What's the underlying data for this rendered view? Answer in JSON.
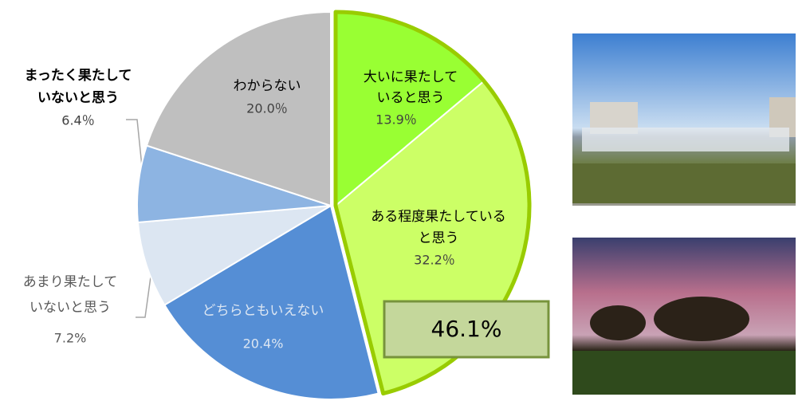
{
  "chart_data": {
    "type": "pie",
    "categories": [
      "大いに果たして\nいると思う",
      "ある程度果たしている\nと思う",
      "どちらともいえない",
      "あまり果たして\nいないと思う",
      "まったく果たして\nいないと思う",
      "わからない"
    ],
    "values": [
      13.9,
      32.2,
      20.4,
      7.2,
      6.4,
      20.0
    ],
    "value_labels": [
      "13.9％",
      "32.2％",
      "20.4%",
      "7.2%",
      "6.4％",
      "20.0％"
    ],
    "colors": [
      "#99ff33",
      "#ccff66",
      "#558ed5",
      "#dce6f2",
      "#8db4e2",
      "#bfbfbf"
    ],
    "annotation": "46.1%"
  }
}
